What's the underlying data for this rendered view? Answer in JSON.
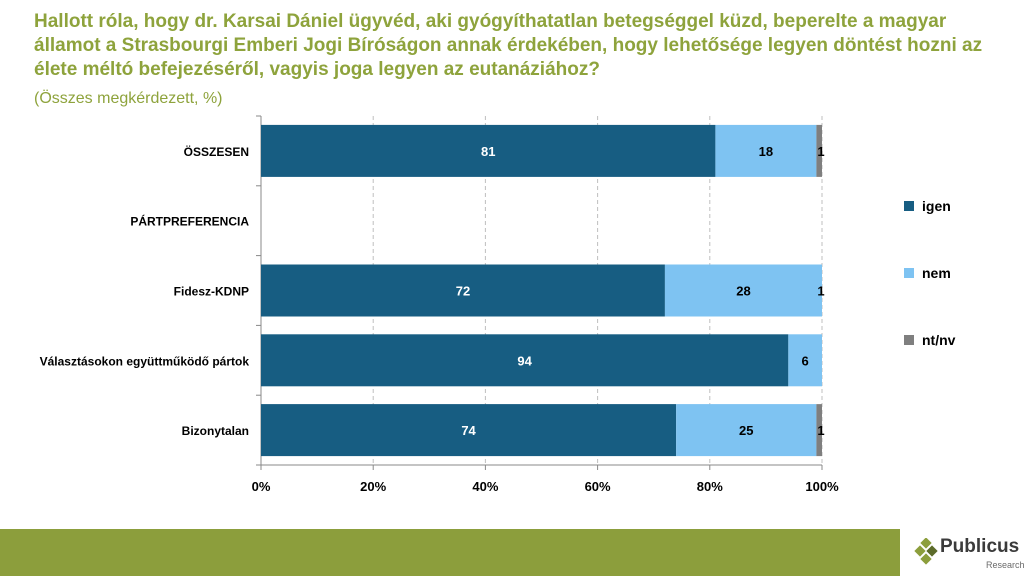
{
  "title": "Hallott róla, hogy dr. Karsai Dániel ügyvéd, aki gyógyíthatatlan betegséggel küzd, beperelte a magyar államot a Strasbourgi Emberi Jogi Bíróságon annak érdekében, hogy lehetősége legyen döntést hozni az élete méltó befejezéséről, vagyis joga legyen az eutanáziához?",
  "subtitle": "(Összes megkérdezett, %)",
  "colors": {
    "title": "#8ea33c",
    "igen": "#175d82",
    "nem": "#7ec3f2",
    "ntnv": "#7f7f7f",
    "footer": "#8c9e3c"
  },
  "logo": {
    "name": "Publicus",
    "sub": "Research",
    "icon": "diamond-logo-icon"
  },
  "chart_data": {
    "type": "bar",
    "orientation": "horizontal",
    "stacked": true,
    "categories": [
      "ÖSSZESEN",
      "PÁRTPREFERENCIA",
      "Fidesz-KDNP",
      "Választásokon együttműködő pártok",
      "Bizonytalan"
    ],
    "series": [
      {
        "name": "igen",
        "values": [
          81,
          null,
          72,
          94,
          74
        ],
        "labels": [
          "81",
          "",
          "72",
          "94",
          "74"
        ]
      },
      {
        "name": "nem",
        "values": [
          18,
          null,
          28,
          6,
          25
        ],
        "labels": [
          "18",
          "",
          "28",
          "6",
          "25"
        ]
      },
      {
        "name": "nt/nv",
        "values": [
          1,
          null,
          1,
          0,
          1
        ],
        "labels": [
          "1",
          "",
          "1",
          "",
          "1"
        ]
      }
    ],
    "xlim": [
      0,
      100
    ],
    "xticks": [
      "0%",
      "20%",
      "40%",
      "60%",
      "80%",
      "100%"
    ],
    "grid": true,
    "legend": "right"
  }
}
